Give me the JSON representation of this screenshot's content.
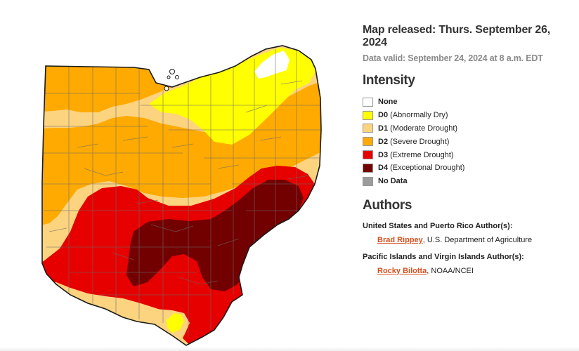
{
  "header": {
    "released": "Map released: Thurs. September 26, 2024",
    "valid": "Data valid: September 24, 2024 at 8 a.m. EDT"
  },
  "intensity": {
    "title": "Intensity",
    "items": [
      {
        "code": "None",
        "label": "",
        "color": "#ffffff"
      },
      {
        "code": "D0",
        "label": "(Abnormally Dry)",
        "color": "#ffff00"
      },
      {
        "code": "D1",
        "label": "(Moderate Drought)",
        "color": "#fcd37f"
      },
      {
        "code": "D2",
        "label": "(Severe Drought)",
        "color": "#ffaa00"
      },
      {
        "code": "D3",
        "label": "(Extreme Drought)",
        "color": "#e60000"
      },
      {
        "code": "D4",
        "label": "(Exceptional Drought)",
        "color": "#730000"
      },
      {
        "code": "No Data",
        "label": "",
        "color": "#9b9b9b"
      }
    ]
  },
  "authors": {
    "title": "Authors",
    "groups": [
      {
        "label": "United States and Puerto Rico Author(s):",
        "name": "Brad Rippey",
        "org": ", U.S. Department of Agriculture"
      },
      {
        "label": "Pacific Islands and Virgin Islands Author(s):",
        "name": "Rocky Bilotta",
        "org": ", NOAA/NCEI"
      }
    ]
  },
  "map": {
    "region": "Ohio",
    "colors": {
      "d0": "#ffff00",
      "d1": "#fcd37f",
      "d2": "#ffaa00",
      "d3": "#e60000",
      "d4": "#730000"
    }
  }
}
